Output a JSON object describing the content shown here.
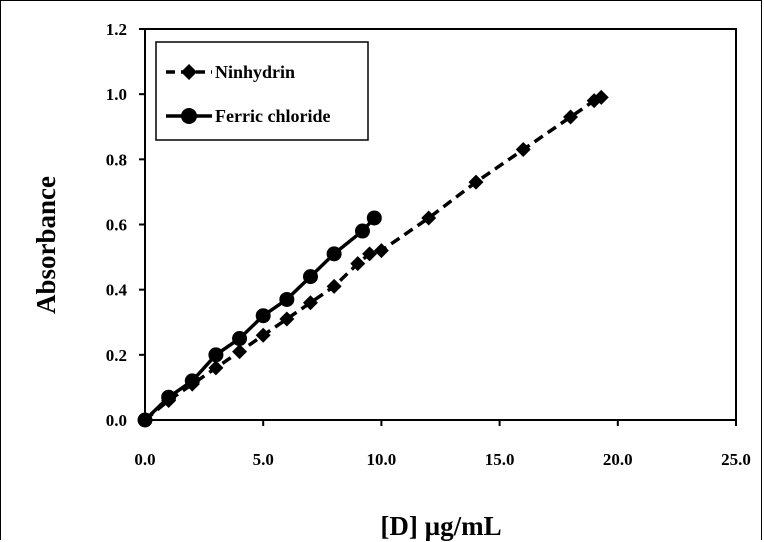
{
  "chart_data": {
    "type": "line",
    "title": "",
    "xlabel": "[D] µg/mL",
    "ylabel": "Absorbance",
    "xlim": [
      0,
      25
    ],
    "ylim": [
      0,
      1.2
    ],
    "xticks": [
      "0.0",
      "5.0",
      "10.0",
      "15.0",
      "20.0",
      "25.0"
    ],
    "yticks": [
      "0.0",
      "0.2",
      "0.4",
      "0.6",
      "0.8",
      "1.0",
      "1.2"
    ],
    "grid": false,
    "legend_position": "top-left",
    "series": [
      {
        "name": "Ninhydrin",
        "marker": "diamond",
        "line_style": "dashed",
        "color": "#000000",
        "x": [
          0,
          1,
          2,
          3,
          4,
          5,
          6,
          7,
          8,
          9,
          9.5,
          10,
          12,
          14,
          16,
          18,
          19,
          19.3
        ],
        "y": [
          0.0,
          0.06,
          0.11,
          0.16,
          0.21,
          0.26,
          0.31,
          0.36,
          0.41,
          0.48,
          0.51,
          0.52,
          0.62,
          0.73,
          0.83,
          0.93,
          0.98,
          0.99
        ]
      },
      {
        "name": "Ferric chloride",
        "marker": "circle",
        "line_style": "solid",
        "color": "#000000",
        "x": [
          0,
          1,
          2,
          3,
          4,
          5,
          6,
          7,
          8,
          9.2,
          9.7
        ],
        "y": [
          0.0,
          0.07,
          0.12,
          0.2,
          0.25,
          0.32,
          0.37,
          0.44,
          0.51,
          0.58,
          0.62
        ]
      }
    ]
  }
}
